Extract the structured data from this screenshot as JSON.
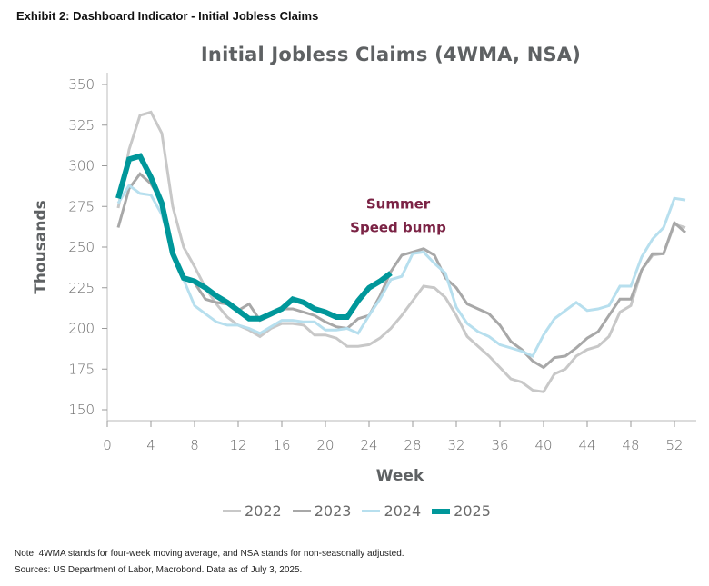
{
  "header": {
    "exhibit_title": "Exhibit 2: Dashboard Indicator - Initial Jobless Claims"
  },
  "footer": {
    "note": "Note: 4WMA stands for four-week moving average, and NSA stands for non-seasonally adjusted.",
    "sources": "Sources: US Department of Labor, Macrobond. Data as of July 3, 2025."
  },
  "chart_data": {
    "type": "line",
    "title": "Initial Jobless Claims (4WMA, NSA)",
    "xlabel": "Week",
    "ylabel": "Thousands",
    "xlim": [
      0,
      54
    ],
    "ylim": [
      145,
      355
    ],
    "xticks": [
      0,
      4,
      8,
      12,
      16,
      20,
      24,
      28,
      32,
      36,
      40,
      44,
      48,
      52
    ],
    "yticks": [
      150,
      175,
      200,
      225,
      250,
      275,
      300,
      325,
      350
    ],
    "grid": false,
    "legend_position": "bottom",
    "annotation": {
      "lines": [
        "Summer",
        "Speed bump"
      ],
      "x": 27,
      "y": 258,
      "color": "#7b2345"
    },
    "series": [
      {
        "name": "2022",
        "color": "#c8c8c8",
        "width": 3,
        "x": [
          1,
          2,
          3,
          4,
          5,
          6,
          7,
          8,
          9,
          10,
          11,
          12,
          13,
          14,
          15,
          16,
          17,
          18,
          19,
          20,
          21,
          22,
          23,
          24,
          25,
          26,
          27,
          28,
          29,
          30,
          31,
          32,
          33,
          34,
          35,
          36,
          37,
          38,
          39,
          40,
          41,
          42,
          43,
          44,
          45,
          46,
          47,
          48,
          49,
          50,
          51,
          52,
          53
        ],
        "values": [
          274,
          310,
          331,
          333,
          320,
          275,
          250,
          238,
          225,
          215,
          207,
          202,
          199,
          195,
          200,
          203,
          203,
          202,
          196,
          196,
          194,
          189,
          189,
          190,
          194,
          200,
          208,
          217,
          226,
          225,
          219,
          208,
          195,
          189,
          183,
          176,
          169,
          167,
          162,
          161,
          172,
          175,
          183,
          187,
          189,
          195,
          210,
          214,
          236,
          245,
          246,
          264,
          262
        ]
      },
      {
        "name": "2023",
        "color": "#a8a8a8",
        "width": 3,
        "x": [
          1,
          2,
          3,
          4,
          5,
          6,
          7,
          8,
          9,
          10,
          11,
          12,
          13,
          14,
          15,
          16,
          17,
          18,
          19,
          20,
          21,
          22,
          23,
          24,
          25,
          26,
          27,
          28,
          29,
          30,
          31,
          32,
          33,
          34,
          35,
          36,
          37,
          38,
          39,
          40,
          41,
          42,
          43,
          44,
          45,
          46,
          47,
          48,
          49,
          50,
          51,
          52,
          53
        ],
        "values": [
          262,
          286,
          295,
          289,
          278,
          248,
          232,
          228,
          218,
          216,
          215,
          211,
          215,
          205,
          208,
          212,
          212,
          210,
          208,
          204,
          201,
          200,
          206,
          208,
          220,
          235,
          245,
          247,
          249,
          245,
          231,
          225,
          215,
          212,
          209,
          202,
          192,
          187,
          180,
          176,
          182,
          183,
          188,
          194,
          198,
          208,
          218,
          218,
          236,
          246,
          246,
          265,
          259
        ]
      },
      {
        "name": "2024",
        "color": "#b7dfee",
        "width": 3,
        "x": [
          1,
          2,
          3,
          4,
          5,
          6,
          7,
          8,
          9,
          10,
          11,
          12,
          13,
          14,
          15,
          16,
          17,
          18,
          19,
          20,
          21,
          22,
          23,
          24,
          25,
          26,
          27,
          28,
          29,
          30,
          31,
          32,
          33,
          34,
          35,
          36,
          37,
          38,
          39,
          40,
          41,
          42,
          43,
          44,
          45,
          46,
          47,
          48,
          49,
          50,
          51,
          52,
          53
        ],
        "values": [
          277,
          288,
          283,
          282,
          270,
          248,
          230,
          214,
          209,
          204,
          202,
          202,
          200,
          197,
          201,
          205,
          205,
          204,
          204,
          199,
          199,
          200,
          197,
          208,
          218,
          230,
          232,
          246,
          247,
          240,
          234,
          213,
          203,
          198,
          195,
          190,
          188,
          186,
          183,
          196,
          206,
          211,
          216,
          211,
          212,
          214,
          226,
          226,
          244,
          255,
          262,
          280,
          279
        ]
      },
      {
        "name": "2025",
        "color": "#00979a",
        "width": 6,
        "x": [
          1,
          2,
          3,
          4,
          5,
          6,
          7,
          8,
          9,
          10,
          11,
          12,
          13,
          14,
          15,
          16,
          17,
          18,
          19,
          20,
          21,
          22,
          23,
          24,
          25,
          26
        ],
        "values": [
          280,
          304,
          306,
          293,
          277,
          246,
          231,
          229,
          225,
          220,
          216,
          211,
          206,
          206,
          209,
          212,
          218,
          216,
          212,
          210,
          207,
          207,
          217,
          225,
          229,
          234
        ]
      }
    ]
  }
}
